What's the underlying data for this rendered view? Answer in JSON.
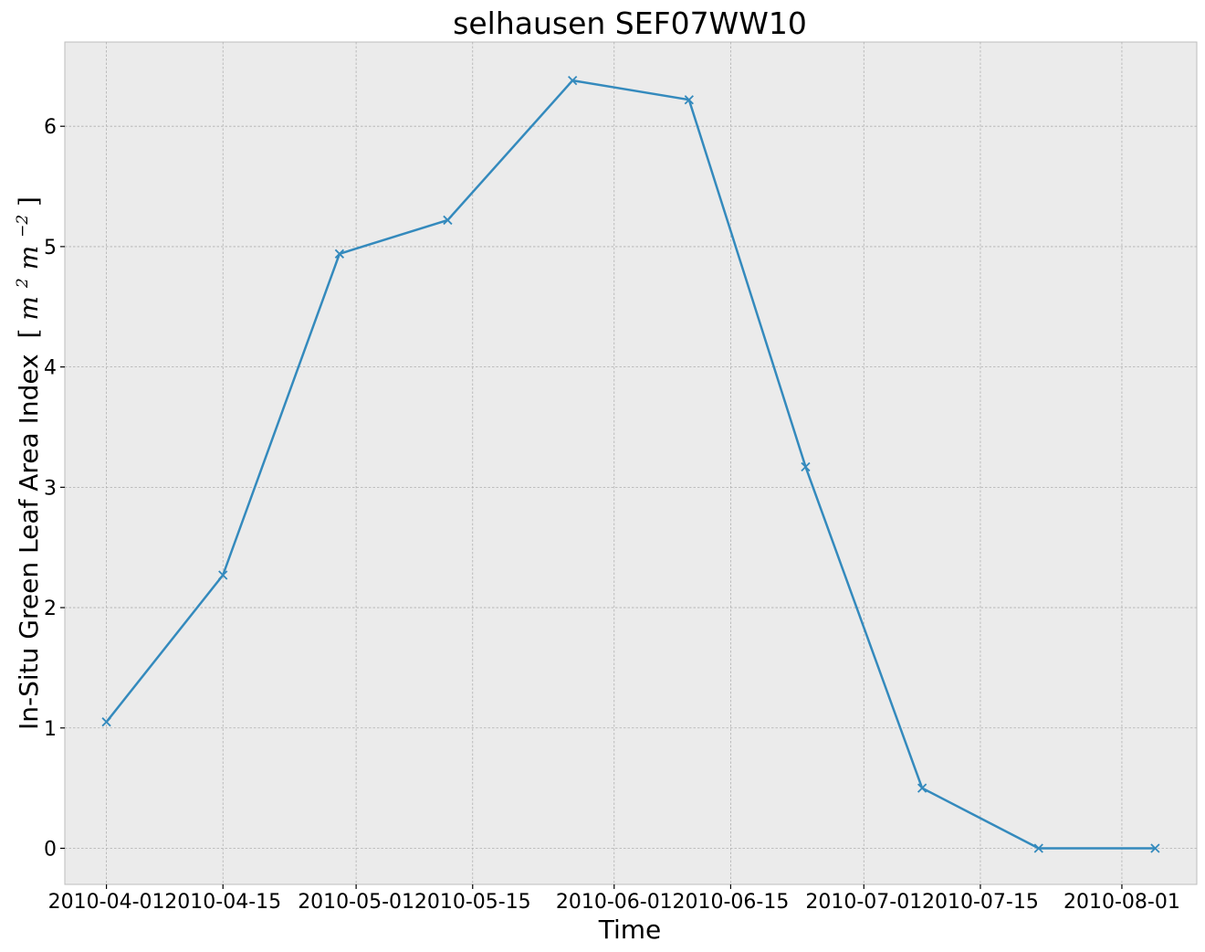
{
  "chart_data": {
    "type": "line",
    "title": "selhausen SEF07WW10",
    "xlabel": "Time",
    "ylabel": "In-Situ Green Leaf Area Index",
    "ylabel_units_parts": [
      "[",
      "m",
      "2",
      " m",
      "−2",
      "]"
    ],
    "x_scale": "date",
    "xlim": [
      "2010-03-27",
      "2010-08-10"
    ],
    "ylim": [
      -0.3,
      6.7
    ],
    "x_ticks": [
      "2010-04-01",
      "2010-04-15",
      "2010-05-01",
      "2010-05-15",
      "2010-06-01",
      "2010-06-15",
      "2010-07-01",
      "2010-07-15",
      "2010-08-01"
    ],
    "y_ticks": [
      0,
      1,
      2,
      3,
      4,
      5,
      6
    ],
    "grid": true,
    "background": "#ebebeb",
    "series": [
      {
        "color": "#348abd",
        "marker": "x",
        "x": [
          "2010-04-01",
          "2010-04-15",
          "2010-04-29",
          "2010-05-12",
          "2010-05-27",
          "2010-06-10",
          "2010-06-24",
          "2010-07-08",
          "2010-07-22",
          "2010-08-05"
        ],
        "y": [
          1.05,
          2.27,
          4.94,
          5.22,
          6.38,
          6.22,
          3.17,
          0.5,
          0.0,
          0.0
        ]
      }
    ]
  }
}
